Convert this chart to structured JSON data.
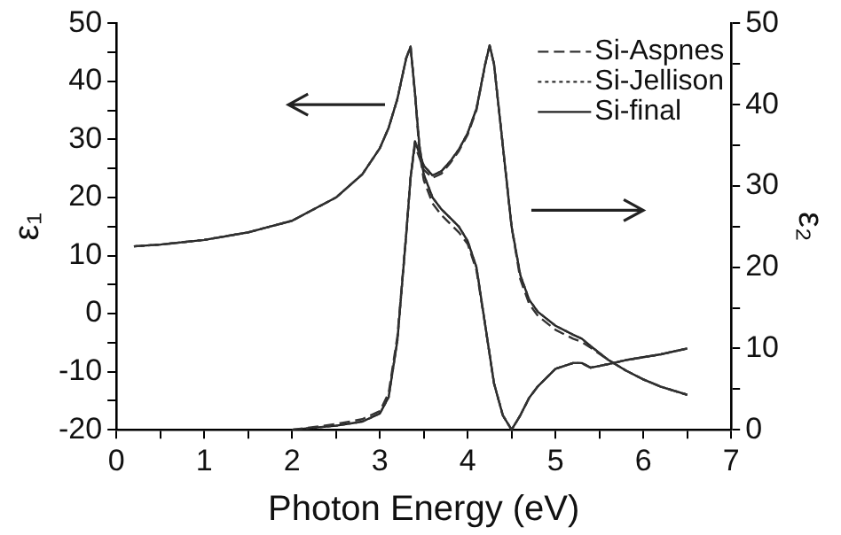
{
  "chart_data": {
    "type": "line",
    "xlabel": "Photon Energy (eV)",
    "ylabel": "ε₁",
    "y2label": "ε₂",
    "x": [
      0.2,
      0.5,
      1,
      1.5,
      2,
      2.5,
      2.8,
      3,
      3.1,
      3.2,
      3.3,
      3.35,
      3.4,
      3.45,
      3.5,
      3.6,
      3.7,
      3.8,
      3.9,
      4,
      4.1,
      4.2,
      4.25,
      4.3,
      4.4,
      4.5,
      4.6,
      4.7,
      4.8,
      5,
      5.2,
      5.3,
      5.4,
      5.6,
      5.8,
      6,
      6.2,
      6.5
    ],
    "series": [
      {
        "name": "Si-Aspnes",
        "color": "#333333",
        "line_style": "dashed",
        "values": [
          11.6,
          11.9,
          12.7,
          14,
          16,
          20,
          24,
          28.5,
          32,
          37,
          44,
          46,
          38,
          28,
          23,
          19,
          17,
          15.5,
          14,
          12,
          7.5,
          -2,
          -7,
          -12,
          -17.5,
          -20,
          -17.5,
          -14.5,
          -12.5,
          -9.5,
          -8.5,
          -8.5,
          -9.3,
          -8.7,
          -8,
          -7.5,
          -7,
          -6
        ]
      },
      {
        "name": "Si-Jellison",
        "color": "#333333",
        "line_style": "dotted",
        "values": [
          11.6,
          11.9,
          12.7,
          14,
          16,
          20,
          24,
          28.5,
          32,
          37,
          44,
          46,
          38,
          29,
          24,
          20,
          18,
          16.5,
          15,
          12.5,
          8,
          -2,
          -7,
          -12,
          -17.5,
          -20,
          -17.5,
          -14.5,
          -12.5,
          -9.5,
          -8.5,
          -8.5,
          -9.3,
          -8.7,
          -8,
          -7.5,
          -7,
          -6
        ]
      },
      {
        "name": "Si-final",
        "color": "#222222",
        "line_style": "solid",
        "values": [
          11.6,
          11.9,
          12.7,
          14,
          16,
          20,
          24,
          28.5,
          32,
          37,
          44,
          46,
          38,
          29,
          24,
          20,
          18,
          16.5,
          15,
          12.5,
          8,
          -2,
          -7,
          -12,
          -17.5,
          -20,
          -17.5,
          -14.5,
          -12.5,
          -9.5,
          -8.5,
          -8.5,
          -9.3,
          -8.7,
          -8,
          -7.5,
          -7,
          -6
        ]
      },
      {
        "color": "#333333",
        "line_style": "dashed",
        "axis": "y2",
        "values": [
          null,
          null,
          null,
          null,
          0,
          0.7,
          1.3,
          2.3,
          4.5,
          11.5,
          24,
          31,
          35,
          33.5,
          32,
          31,
          31.5,
          32.8,
          34.3,
          36.3,
          39.3,
          45,
          47.3,
          45,
          35,
          25,
          18.5,
          15.5,
          14,
          12.3,
          11.2,
          10.8,
          10.1,
          8.6,
          7.3,
          6.2,
          5.3,
          4.3
        ]
      },
      {
        "color": "#333333",
        "line_style": "dotted",
        "axis": "y2",
        "values": [
          null,
          null,
          null,
          null,
          0,
          0.5,
          1,
          2,
          4,
          11,
          24,
          31,
          35.5,
          34,
          32.5,
          31.3,
          31.8,
          33,
          34.5,
          36.5,
          39.5,
          45,
          47.3,
          45,
          35,
          25,
          19,
          16,
          14.5,
          12.8,
          11.7,
          11.2,
          10.3,
          8.6,
          7.3,
          6.2,
          5.3,
          4.3
        ]
      },
      {
        "color": "#222222",
        "line_style": "solid",
        "axis": "y2",
        "values": [
          null,
          null,
          null,
          null,
          0,
          0.5,
          1,
          2,
          4,
          11,
          24,
          31,
          35.5,
          34,
          32.5,
          31.3,
          31.8,
          33,
          34.5,
          36.5,
          39.5,
          45,
          47.3,
          45,
          35,
          25,
          19,
          16,
          14.5,
          12.8,
          11.7,
          11.2,
          10.3,
          8.6,
          7.3,
          6.2,
          5.3,
          4.3
        ]
      }
    ],
    "xlim": [
      0,
      7
    ],
    "xticks": [
      0,
      {
        "value": 0.5,
        "label": null
      },
      1,
      {
        "value": 1.5,
        "label": null
      },
      2,
      {
        "value": 2.5,
        "label": null
      },
      3,
      {
        "value": 3.5,
        "label": null
      },
      4,
      {
        "value": 4.5,
        "label": null
      },
      5,
      {
        "value": 5.5,
        "label": null
      },
      6,
      {
        "value": 6.5,
        "label": null
      },
      7
    ],
    "ylim": [
      -20,
      50
    ],
    "yticks": [
      -20,
      {
        "value": -15,
        "label": null
      },
      -10,
      {
        "value": -5,
        "label": null
      },
      0,
      {
        "value": 5,
        "label": null
      },
      10,
      {
        "value": 15,
        "label": null
      },
      20,
      {
        "value": 25,
        "label": null
      },
      30,
      {
        "value": 35,
        "label": null
      },
      40,
      {
        "value": 45,
        "label": null
      },
      50
    ],
    "y2lim": [
      0,
      50
    ],
    "y2ticks": [
      0,
      {
        "value": 5,
        "label": null
      },
      10,
      {
        "value": 15,
        "label": null
      },
      20,
      {
        "value": 25,
        "label": null
      },
      30,
      {
        "value": 35,
        "label": null
      },
      40,
      {
        "value": 45,
        "label": null
      },
      50
    ],
    "legend": "top right"
  }
}
